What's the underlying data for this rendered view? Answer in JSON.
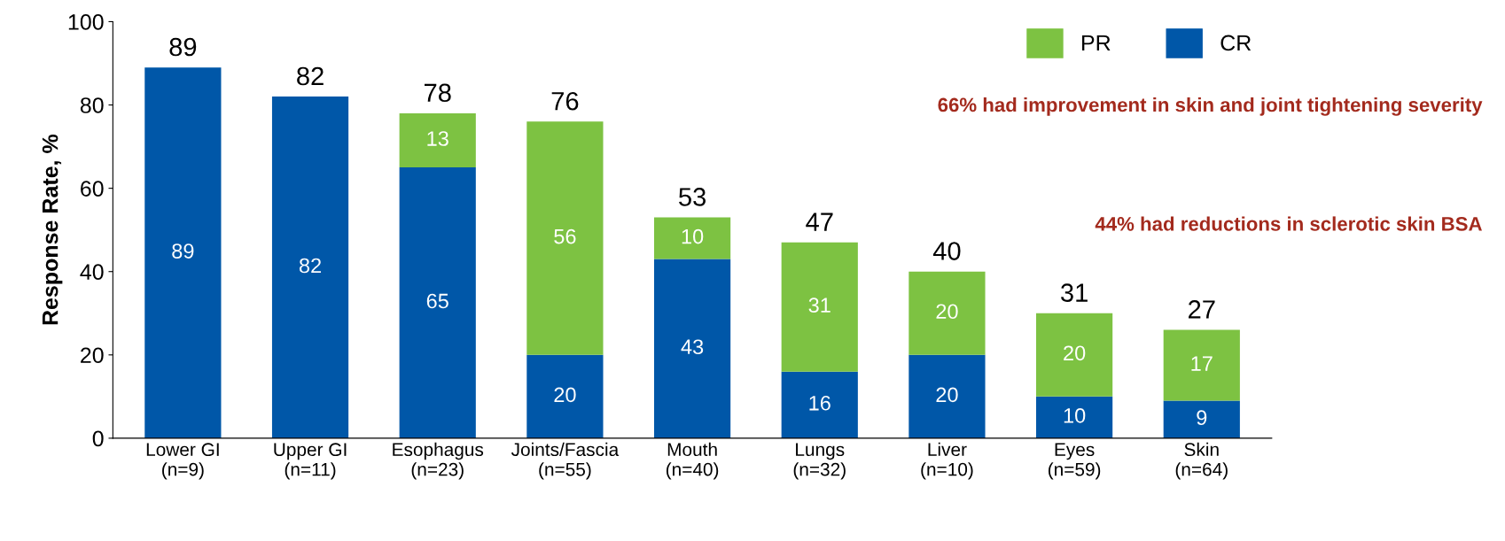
{
  "chart_data": {
    "type": "bar",
    "stacked": true,
    "ylabel": "Response Rate, %",
    "categories": [
      "Lower GI\n(n=9)",
      "Upper GI\n(n=11)",
      "Esophagus\n(n=23)",
      "Joints/Fascia\n(n=55)",
      "Mouth\n(n=40)",
      "Lungs\n(n=32)",
      "Liver\n(n=10)",
      "Eyes\n(n=59)",
      "Skin\n(n=64)"
    ],
    "series": [
      {
        "name": "CR",
        "color": "#0057a8",
        "values": [
          89,
          82,
          65,
          20,
          43,
          16,
          20,
          10,
          9
        ]
      },
      {
        "name": "PR",
        "color": "#7dc242",
        "values": [
          null,
          null,
          13,
          56,
          10,
          31,
          20,
          20,
          17
        ]
      }
    ],
    "totals": [
      "89",
      "82",
      "78",
      "76",
      "53",
      "47",
      "40",
      "31",
      "27"
    ],
    "data_labels": true,
    "ylim": [
      0,
      100
    ],
    "yticks": [
      0,
      20,
      40,
      60,
      80,
      100
    ],
    "legend": "top right",
    "grid": false,
    "annotations": [
      "66% had improvement in skin and joint tightening severity",
      "44% had reductions in sclerotic skin BSA"
    ]
  }
}
